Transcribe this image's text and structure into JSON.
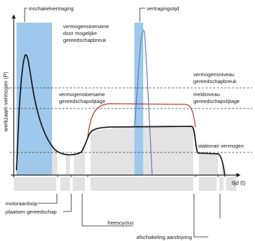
{
  "diagram": {
    "y_axis_label": "werkzaam vermogen (P)",
    "x_axis_label": "tijd (t)",
    "labels": {
      "inschakelvertraging": "inschakelvertraging",
      "vertragingstijd": "vertragingstijd",
      "vermogenstoename_breuk": [
        "vermogenstoename",
        "door mogelijke",
        "gereedschapbreuk"
      ],
      "vermogensniveau_breuk": [
        "vermogensniveau",
        "gereedschapbreuk"
      ],
      "vermogenstoename_slijtage": [
        "vermogenstoename",
        "gereedschapslijtage"
      ],
      "meldniveau_slijtage": [
        "meldniveau",
        "gereedschapslijtage"
      ],
      "stationair_vermogen": "stationair vermogen",
      "motoraanloop": "motoraanloop",
      "plaatsen_gereedschap": "plaatsen gereedschap",
      "freescyclus": "freescyclus",
      "afschakeling_aandrijving": "afschakeling aandrijving"
    },
    "colors": {
      "blue_band": "#9fc9ec",
      "gray_fill": "#e3e3e3",
      "red_curve": "#c0392b",
      "blue_curve": "#5a79b8",
      "dark": "#1a1a1a"
    }
  }
}
